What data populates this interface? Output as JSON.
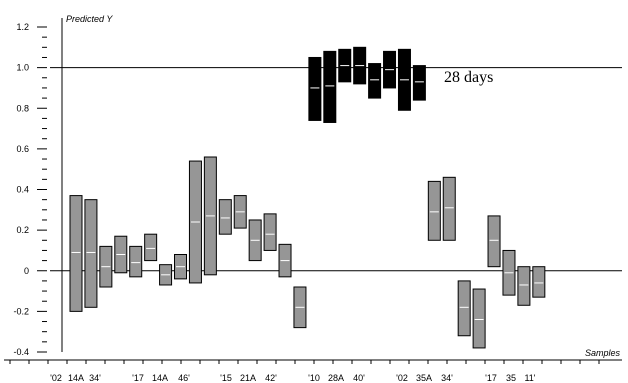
{
  "chart_data": {
    "type": "bar",
    "title": "",
    "ylabel": "Predicted Y",
    "xlabel": "Samples",
    "ylim": [
      -0.4,
      1.2
    ],
    "yticks": [
      -0.4,
      -0.2,
      0,
      0.2,
      0.4,
      0.6,
      0.8,
      1.0,
      1.2
    ],
    "ytick_labels": [
      "-0.4",
      "-0.2",
      "0",
      "0.2",
      "0.4",
      "0.6",
      "0.8",
      "1.0",
      "1.2"
    ],
    "reference_lines": [
      1.0,
      0.0
    ],
    "annotation": "28 days",
    "x_tick_labels": [
      "'02",
      "14A",
      "34'",
      "'17",
      "14A",
      "46'",
      "'15",
      "21A",
      "42'",
      "'10",
      "28A",
      "40'",
      "'02",
      "35A",
      "34'",
      "'17",
      "35",
      "11'"
    ],
    "series": [
      {
        "values": [
          {
            "low": -0.2,
            "high": 0.37,
            "mid": 0.09,
            "color": "gray"
          },
          {
            "low": -0.18,
            "high": 0.35,
            "mid": 0.09,
            "color": "gray"
          },
          {
            "low": -0.08,
            "high": 0.12,
            "mid": 0.02,
            "color": "gray"
          },
          {
            "low": -0.01,
            "high": 0.17,
            "mid": 0.08,
            "color": "gray"
          },
          {
            "low": -0.03,
            "high": 0.12,
            "mid": 0.04,
            "color": "gray"
          },
          {
            "low": 0.05,
            "high": 0.18,
            "mid": 0.11,
            "color": "gray"
          },
          {
            "low": -0.07,
            "high": 0.03,
            "mid": -0.02,
            "color": "gray"
          },
          {
            "low": -0.04,
            "high": 0.08,
            "mid": 0.02,
            "color": "gray"
          },
          {
            "low": -0.06,
            "high": 0.54,
            "mid": 0.24,
            "color": "gray"
          },
          {
            "low": -0.02,
            "high": 0.56,
            "mid": 0.27,
            "color": "gray"
          },
          {
            "low": 0.18,
            "high": 0.35,
            "mid": 0.26,
            "color": "gray"
          },
          {
            "low": 0.21,
            "high": 0.37,
            "mid": 0.29,
            "color": "gray"
          },
          {
            "low": 0.05,
            "high": 0.25,
            "mid": 0.15,
            "color": "gray"
          },
          {
            "low": 0.1,
            "high": 0.28,
            "mid": 0.18,
            "color": "gray"
          },
          {
            "low": -0.03,
            "high": 0.13,
            "mid": 0.05,
            "color": "gray"
          },
          {
            "low": -0.28,
            "high": -0.08,
            "mid": -0.18,
            "color": "gray"
          },
          {
            "low": 0.74,
            "high": 1.05,
            "mid": 0.9,
            "color": "black"
          },
          {
            "low": 0.73,
            "high": 1.08,
            "mid": 0.91,
            "color": "black"
          },
          {
            "low": 0.93,
            "high": 1.09,
            "mid": 1.01,
            "color": "black"
          },
          {
            "low": 0.92,
            "high": 1.1,
            "mid": 1.01,
            "color": "black"
          },
          {
            "low": 0.85,
            "high": 1.02,
            "mid": 0.94,
            "color": "black"
          },
          {
            "low": 0.9,
            "high": 1.08,
            "mid": 0.99,
            "color": "black"
          },
          {
            "low": 0.79,
            "high": 1.09,
            "mid": 0.94,
            "color": "black"
          },
          {
            "low": 0.84,
            "high": 1.01,
            "mid": 0.93,
            "color": "black"
          },
          {
            "low": 0.15,
            "high": 0.44,
            "mid": 0.29,
            "color": "gray"
          },
          {
            "low": 0.15,
            "high": 0.46,
            "mid": 0.31,
            "color": "gray"
          },
          {
            "low": -0.32,
            "high": -0.05,
            "mid": -0.18,
            "color": "gray"
          },
          {
            "low": -0.38,
            "high": -0.09,
            "mid": -0.24,
            "color": "gray"
          },
          {
            "low": 0.02,
            "high": 0.27,
            "mid": 0.15,
            "color": "gray"
          },
          {
            "low": -0.12,
            "high": 0.1,
            "mid": -0.01,
            "color": "gray"
          },
          {
            "low": -0.17,
            "high": 0.02,
            "mid": -0.07,
            "color": "gray"
          },
          {
            "low": -0.13,
            "high": 0.02,
            "mid": -0.06,
            "color": "gray"
          }
        ]
      }
    ],
    "colors": {
      "gray_fill": "#969696",
      "black_fill": "#000000",
      "mid_line_on_gray": "#ffffff",
      "mid_line_on_black": "#ffffff"
    },
    "grid": false,
    "legend": "none"
  }
}
